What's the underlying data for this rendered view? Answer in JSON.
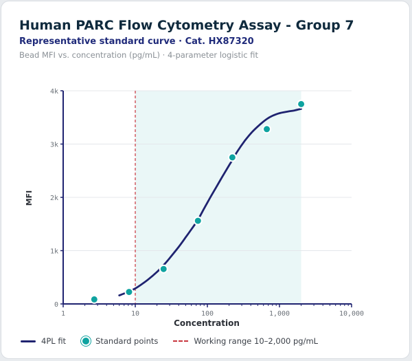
{
  "header": {
    "title": "Human PARC Flow Cytometry Assay - Group 7",
    "subtitle": "Representative standard curve · Cat. HX87320",
    "description": "Bead MFI vs. concentration (pg/mL) · 4-parameter logistic fit"
  },
  "legend": {
    "fit_label": "4PL fit",
    "points_label": "Standard points",
    "range_label": "Working range 10–2,000 pg/mL"
  },
  "colors": {
    "fit": "#1f2370",
    "points": "#0fa3a0",
    "range_line": "#c8353d",
    "range_fill": "#eaf7f7",
    "axis": "#1f2370",
    "grid": "#e4e7eb"
  },
  "chart_data": {
    "type": "scatter",
    "title": "",
    "xlabel": "Concentration",
    "ylabel": "MFI",
    "x_scale": "log",
    "xlim": [
      1,
      10000
    ],
    "ylim": [
      0,
      4000
    ],
    "x_ticks": [
      1,
      10,
      100,
      1000,
      10000
    ],
    "x_tick_labels": [
      "1",
      "10",
      "100",
      "1,000",
      "10,000"
    ],
    "y_ticks": [
      0,
      1000,
      2000,
      3000,
      4000
    ],
    "y_tick_labels": [
      "0",
      "1k",
      "2k",
      "3k",
      "4k"
    ],
    "working_range": [
      10,
      2000
    ],
    "series": [
      {
        "name": "Standard points",
        "x": [
          2.7,
          8.2,
          24.7,
          74,
          222,
          667,
          2000
        ],
        "y": [
          85,
          225,
          655,
          1560,
          2750,
          3280,
          3750
        ]
      },
      {
        "name": "4PL fit",
        "x": [
          6,
          7,
          8.2,
          10,
          12,
          15,
          20,
          25,
          30,
          40,
          50,
          60,
          74,
          90,
          110,
          130,
          160,
          200,
          222,
          260,
          330,
          420,
          550,
          667,
          800,
          1000,
          1300,
          1600,
          2000
        ],
        "y": [
          160,
          195,
          235,
          290,
          360,
          455,
          600,
          735,
          860,
          1070,
          1250,
          1400,
          1580,
          1790,
          2000,
          2170,
          2380,
          2600,
          2700,
          2860,
          3060,
          3230,
          3380,
          3470,
          3530,
          3580,
          3610,
          3630,
          3660
        ]
      }
    ]
  }
}
